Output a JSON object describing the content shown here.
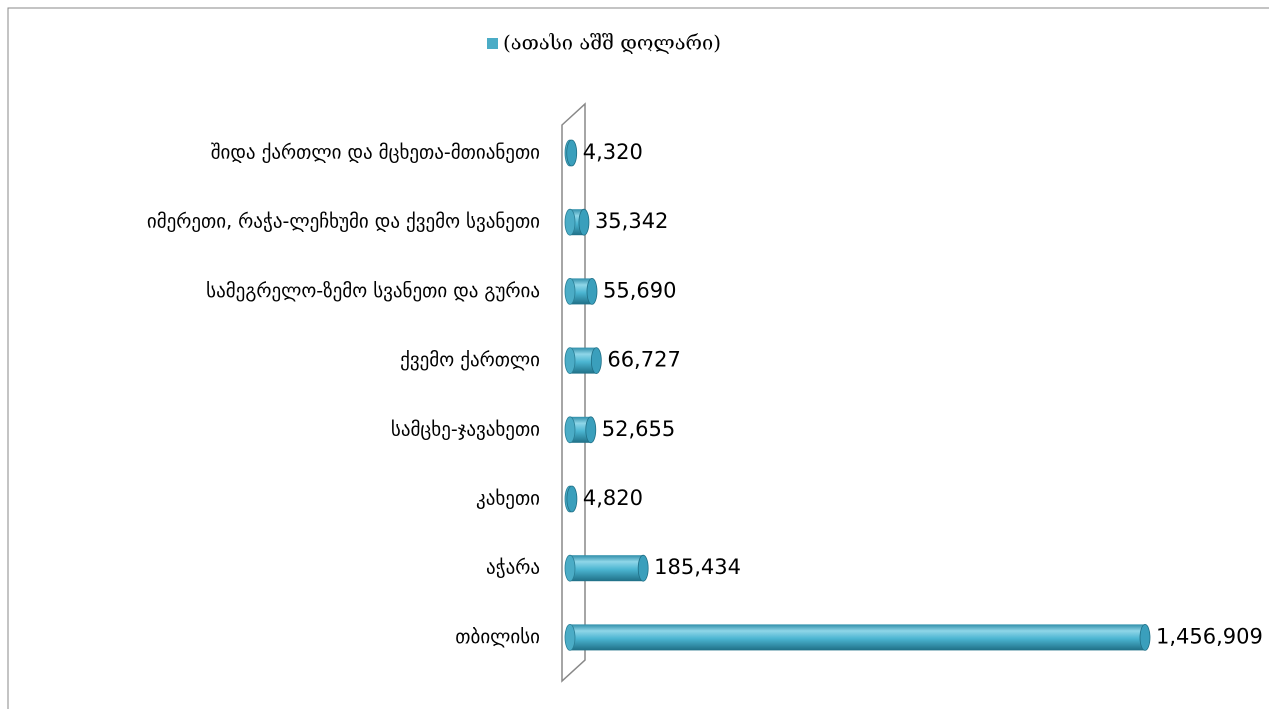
{
  "chart_data": {
    "type": "bar",
    "orientation": "horizontal",
    "categories": [
      "შიდა ქართლი და მცხეთა-მთიანეთი",
      "იმერეთი, რაჭა-ლეჩხუმი და ქვემო სვანეთი",
      "სამეგრელო-ზემო სვანეთი და გურია",
      "ქვემო ქართლი",
      "სამცხე-ჯავახეთი",
      "კახეთი",
      "აჭარა",
      "თბილისი"
    ],
    "series": [
      {
        "name": "(ათასი აშშ დოლარი)",
        "color": "#4bacc6",
        "values": [
          4320,
          35342,
          55690,
          66727,
          52655,
          4820,
          185434,
          1456909
        ],
        "value_labels": [
          "4,320",
          "35,342",
          "55,690",
          "66,727",
          "52,655",
          "4,820",
          "185,434",
          "1,456,909"
        ]
      }
    ],
    "legend": "top"
  }
}
